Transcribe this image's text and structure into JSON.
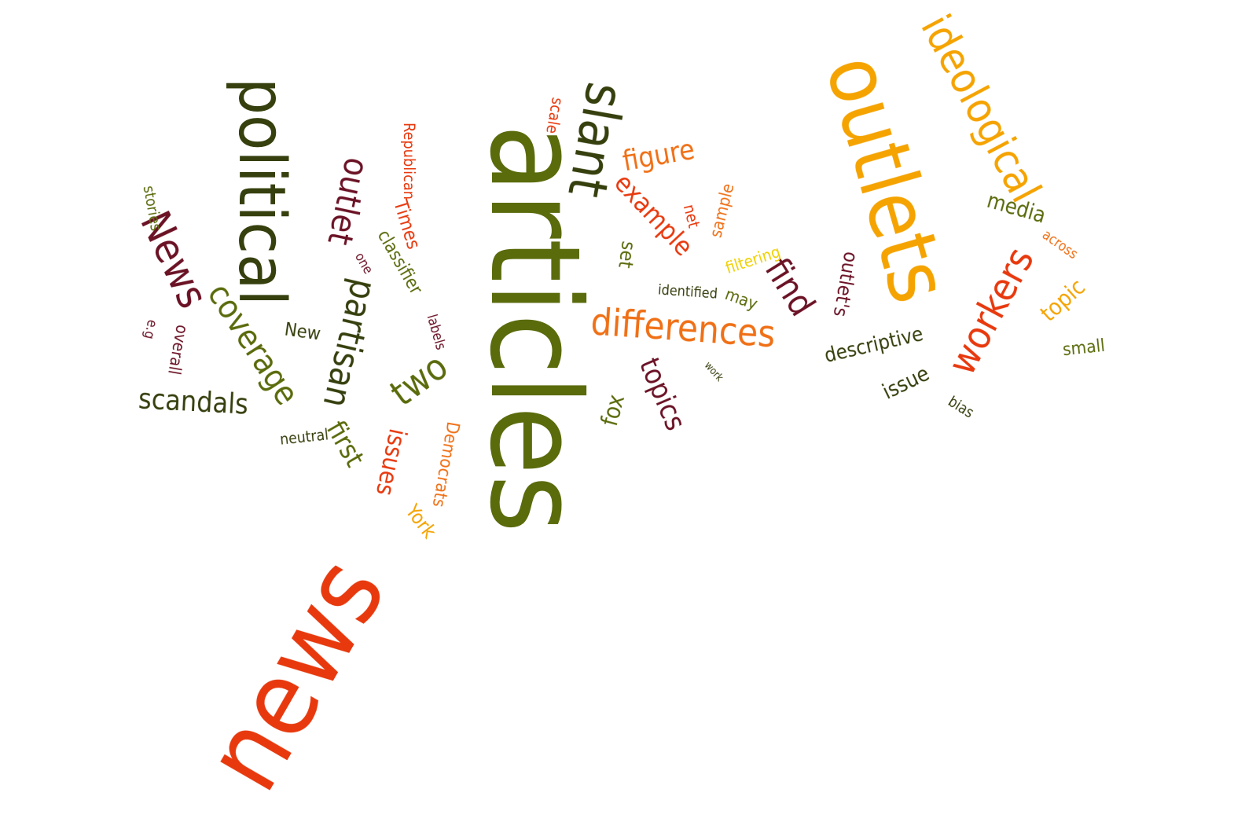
{
  "colors": {
    "background": "#ffffff",
    "olive": "#5a6b0c",
    "dark_olive": "#36400e",
    "maroon": "#6b1225",
    "red_orange": "#e8390e",
    "orange": "#f07016",
    "amber": "#f5a300",
    "yellow": "#f0d000"
  },
  "words": [
    {
      "text": "articles",
      "color": "#5a6b0c"
    },
    {
      "text": "news",
      "color": "#e8390e"
    },
    {
      "text": "outlets",
      "color": "#f5a300"
    },
    {
      "text": "political",
      "color": "#36400e"
    },
    {
      "text": "ideological",
      "color": "#f5a300"
    },
    {
      "text": "slant",
      "color": "#36400e"
    },
    {
      "text": "differences",
      "color": "#f07016"
    },
    {
      "text": "coverage",
      "color": "#5a6b0c"
    },
    {
      "text": "partisan",
      "color": "#36400e"
    },
    {
      "text": "workers",
      "color": "#e8390e"
    },
    {
      "text": "outlet",
      "color": "#6b1225"
    },
    {
      "text": "News",
      "color": "#6b1225"
    },
    {
      "text": "scandals",
      "color": "#36400e"
    },
    {
      "text": "two",
      "color": "#5a6b0c"
    },
    {
      "text": "example",
      "color": "#e8390e"
    },
    {
      "text": "figure",
      "color": "#f07016"
    },
    {
      "text": "topics",
      "color": "#6b1225"
    },
    {
      "text": "issues",
      "color": "#e8390e"
    },
    {
      "text": "descriptive",
      "color": "#36400e"
    },
    {
      "text": "topic",
      "color": "#f5a300"
    },
    {
      "text": "media",
      "color": "#5a6b0c"
    },
    {
      "text": "find",
      "color": "#6b1225"
    },
    {
      "text": "outlet's",
      "color": "#6b1225"
    },
    {
      "text": "classifier",
      "color": "#5a6b0c"
    },
    {
      "text": "Times",
      "color": "#e8390e"
    },
    {
      "text": "Democrats",
      "color": "#f07016"
    },
    {
      "text": "first",
      "color": "#5a6b0c"
    },
    {
      "text": "York",
      "color": "#f5a300"
    },
    {
      "text": "New",
      "color": "#36400e"
    },
    {
      "text": "fox",
      "color": "#5a6b0c"
    },
    {
      "text": "issue",
      "color": "#36400e"
    },
    {
      "text": "bias",
      "color": "#36400e"
    },
    {
      "text": "small",
      "color": "#5a6b0c"
    },
    {
      "text": "across",
      "color": "#f07016"
    },
    {
      "text": "identified",
      "color": "#36400e"
    },
    {
      "text": "filtering",
      "color": "#f0d000"
    },
    {
      "text": "may",
      "color": "#5a6b0c"
    },
    {
      "text": "work",
      "color": "#36400e"
    },
    {
      "text": "set",
      "color": "#5a6b0c"
    },
    {
      "text": "net",
      "color": "#e8390e"
    },
    {
      "text": "sample",
      "color": "#f07016"
    },
    {
      "text": "scale",
      "color": "#e8390e"
    },
    {
      "text": "Republican",
      "color": "#e8390e"
    },
    {
      "text": "stories",
      "color": "#5a6b0c"
    },
    {
      "text": "overall",
      "color": "#6b1225"
    },
    {
      "text": "e.g",
      "color": "#6b1225"
    },
    {
      "text": "one",
      "color": "#6b1225"
    },
    {
      "text": "labels",
      "color": "#6b1225"
    },
    {
      "text": "neutral",
      "color": "#36400e"
    }
  ]
}
